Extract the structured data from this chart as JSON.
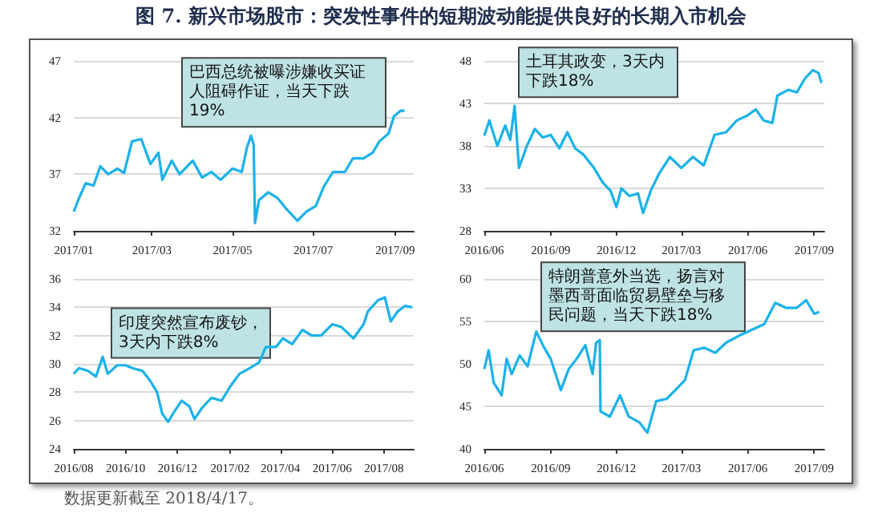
{
  "chart_data": [
    {
      "type": "line",
      "title": "图 7. 新兴市场股市：突发性事件的短期波动能提供良好的长期入市机会",
      "x": [
        "2017-01-01",
        "2017-01-05",
        "2017-01-10",
        "2017-01-16",
        "2017-01-21",
        "2017-01-27",
        "2017-02-03",
        "2017-02-08",
        "2017-02-14",
        "2017-02-21",
        "2017-02-28",
        "2017-03-06",
        "2017-03-09",
        "2017-03-16",
        "2017-03-22",
        "2017-04-01",
        "2017-04-08",
        "2017-04-15",
        "2017-04-22",
        "2017-05-01",
        "2017-05-08",
        "2017-05-12",
        "2017-05-15",
        "2017-05-17",
        "2017-05-18",
        "2017-05-21",
        "2017-05-28",
        "2017-06-04",
        "2017-06-11",
        "2017-06-19",
        "2017-06-26",
        "2017-07-03",
        "2017-07-09",
        "2017-07-16",
        "2017-07-25",
        "2017-07-31",
        "2017-08-08",
        "2017-08-15",
        "2017-08-20",
        "2017-08-27",
        "2017-08-31",
        "2017-09-05",
        "2017-09-08"
      ],
      "series": [
        {
          "color": "#1ab2ea",
          "values": [
            33.7,
            34.9,
            36.2,
            36.0,
            37.7,
            37.0,
            37.5,
            37.1,
            39.9,
            40.1,
            37.9,
            38.9,
            36.5,
            38.2,
            37.0,
            38.2,
            36.7,
            37.2,
            36.5,
            37.5,
            37.2,
            39.4,
            40.4,
            39.6,
            32.7,
            34.7,
            35.4,
            34.9,
            33.9,
            32.9,
            33.7,
            34.2,
            35.9,
            37.2,
            37.2,
            38.4,
            38.4,
            38.9,
            39.9,
            40.6,
            42.1,
            42.6,
            42.6
          ]
        }
      ],
      "xlim": [
        "2017-01-01",
        "2017-09-15"
      ],
      "xticks": [
        {
          "value": "2017-01-01",
          "label": "2017/01"
        },
        {
          "value": "2017-03-01",
          "label": "2017/03"
        },
        {
          "value": "2017-05-01",
          "label": "2017/05"
        },
        {
          "value": "2017-07-01",
          "label": "2017/07"
        },
        {
          "value": "2017-09-01",
          "label": "2017/09"
        }
      ],
      "ylim": [
        32,
        47
      ],
      "yticks": [
        32,
        37,
        42,
        47
      ],
      "grid": "y",
      "annotations": [
        {
          "text": "巴西总统被曝涉嫌收买证人阻碍作证，当天下跌19%",
          "x": "2017-05-15",
          "y": 40.4
        }
      ]
    },
    {
      "type": "line",
      "x": [
        "2016-06-01",
        "2016-06-08",
        "2016-06-19",
        "2016-06-30",
        "2016-07-07",
        "2016-07-13",
        "2016-07-19",
        "2016-07-30",
        "2016-08-10",
        "2016-08-21",
        "2016-09-01",
        "2016-09-13",
        "2016-09-24",
        "2016-10-05",
        "2016-10-16",
        "2016-10-31",
        "2016-11-12",
        "2016-11-23",
        "2016-12-01",
        "2016-12-08",
        "2016-12-19",
        "2016-12-31",
        "2017-01-07",
        "2017-01-18",
        "2017-01-29",
        "2017-02-13",
        "2017-03-01",
        "2017-03-17",
        "2017-04-01",
        "2017-04-16",
        "2017-05-02",
        "2017-05-17",
        "2017-06-01",
        "2017-06-12",
        "2017-06-23",
        "2017-07-05",
        "2017-07-12",
        "2017-07-27",
        "2017-08-08",
        "2017-08-19",
        "2017-08-30",
        "2017-09-07",
        "2017-09-11"
      ],
      "series": [
        {
          "color": "#1ab2ea",
          "values": [
            39.2,
            41.0,
            38.0,
            40.4,
            38.7,
            42.7,
            35.4,
            38.0,
            40.0,
            39.0,
            39.3,
            37.7,
            39.6,
            37.7,
            37.0,
            35.4,
            33.7,
            32.7,
            30.8,
            33.0,
            32.1,
            32.4,
            30.1,
            32.8,
            34.7,
            36.7,
            35.4,
            36.7,
            35.7,
            39.3,
            39.6,
            41.0,
            41.6,
            42.3,
            41.0,
            40.7,
            43.9,
            44.6,
            44.3,
            45.9,
            46.9,
            46.6,
            45.4
          ]
        }
      ],
      "xlim": [
        "2016-06-01",
        "2017-09-15"
      ],
      "xticks": [
        {
          "value": "2016-06-01",
          "label": "2016/06"
        },
        {
          "value": "2016-09-01",
          "label": "2016/09"
        },
        {
          "value": "2016-12-01",
          "label": "2016/12"
        },
        {
          "value": "2017-03-01",
          "label": "2017/03"
        },
        {
          "value": "2017-06-01",
          "label": "2017/06"
        },
        {
          "value": "2017-09-01",
          "label": "2017/09"
        }
      ],
      "ylim": [
        28,
        48
      ],
      "yticks": [
        28,
        33,
        38,
        43,
        48
      ],
      "grid": "y",
      "annotations": [
        {
          "text": "土耳其政变，3天内下跌18%",
          "x": "2016-07-13",
          "y": 42.7
        }
      ]
    },
    {
      "type": "line",
      "x": [
        "2016-08-01",
        "2016-08-07",
        "2016-08-18",
        "2016-08-27",
        "2016-09-04",
        "2016-09-10",
        "2016-09-21",
        "2016-10-01",
        "2016-10-09",
        "2016-10-21",
        "2016-10-30",
        "2016-11-07",
        "2016-11-13",
        "2016-11-20",
        "2016-11-28",
        "2016-12-06",
        "2016-12-15",
        "2016-12-21",
        "2016-12-30",
        "2017-01-10",
        "2017-01-22",
        "2017-02-01",
        "2017-02-12",
        "2017-02-24",
        "2017-03-07",
        "2017-03-15",
        "2017-03-27",
        "2017-04-04",
        "2017-04-15",
        "2017-04-27",
        "2017-05-08",
        "2017-05-19",
        "2017-06-01",
        "2017-06-12",
        "2017-06-26",
        "2017-07-08",
        "2017-07-13",
        "2017-07-25",
        "2017-08-02",
        "2017-08-09",
        "2017-08-17",
        "2017-08-26",
        "2017-09-03"
      ],
      "series": [
        {
          "color": "#1ab2ea",
          "values": [
            29.3,
            29.7,
            29.5,
            29.1,
            30.5,
            29.3,
            29.9,
            29.9,
            29.7,
            29.5,
            28.8,
            28.0,
            26.5,
            25.9,
            26.7,
            27.4,
            27.0,
            26.1,
            26.9,
            27.6,
            27.4,
            28.4,
            29.3,
            29.7,
            30.1,
            31.2,
            31.2,
            31.8,
            31.4,
            32.4,
            32.0,
            32.0,
            32.8,
            32.6,
            31.8,
            32.8,
            33.7,
            34.5,
            34.7,
            33.0,
            33.7,
            34.1,
            34.0
          ]
        }
      ],
      "xlim": [
        "2016-08-01",
        "2017-09-05"
      ],
      "xticks": [
        {
          "value": "2016-08-01",
          "label": "2016/08"
        },
        {
          "value": "2016-10-01",
          "label": "2016/10"
        },
        {
          "value": "2016-12-01",
          "label": "2016/12"
        },
        {
          "value": "2017-02-01",
          "label": "2017/02"
        },
        {
          "value": "2017-04-01",
          "label": "2017/04"
        },
        {
          "value": "2017-06-01",
          "label": "2017/06"
        },
        {
          "value": "2017-08-01",
          "label": "2017/08"
        }
      ],
      "ylim": [
        24,
        36
      ],
      "yticks": [
        24,
        26,
        28,
        30,
        32,
        34,
        36
      ],
      "grid": "y",
      "annotations": [
        {
          "text": "印度突然宣布废钞，3天内下跌8%",
          "x": "2016-10-15",
          "y": 29.8
        }
      ]
    },
    {
      "type": "line",
      "x": [
        "2016-06-01",
        "2016-06-07",
        "2016-06-14",
        "2016-06-25",
        "2016-07-02",
        "2016-07-09",
        "2016-07-20",
        "2016-07-31",
        "2016-08-12",
        "2016-08-23",
        "2016-09-01",
        "2016-09-15",
        "2016-09-26",
        "2016-10-07",
        "2016-10-19",
        "2016-10-29",
        "2016-11-03",
        "2016-11-08",
        "2016-11-09",
        "2016-11-22",
        "2016-12-06",
        "2016-12-18",
        "2017-01-02",
        "2017-01-13",
        "2017-01-25",
        "2017-02-09",
        "2017-02-24",
        "2017-03-06",
        "2017-03-18",
        "2017-04-02",
        "2017-04-17",
        "2017-05-02",
        "2017-05-22",
        "2017-06-09",
        "2017-06-24",
        "2017-07-09",
        "2017-07-24",
        "2017-08-08",
        "2017-08-21",
        "2017-09-01",
        "2017-09-08"
      ],
      "series": [
        {
          "color": "#1ab2ea",
          "values": [
            49.4,
            51.6,
            47.8,
            46.3,
            50.6,
            48.8,
            51.0,
            49.7,
            53.8,
            51.9,
            50.6,
            46.9,
            49.4,
            50.6,
            52.2,
            48.8,
            52.5,
            52.8,
            44.4,
            43.8,
            46.3,
            43.8,
            43.1,
            41.9,
            45.6,
            45.9,
            47.2,
            48.1,
            51.6,
            51.9,
            51.3,
            52.5,
            53.4,
            54.1,
            54.7,
            57.2,
            56.6,
            56.6,
            57.5,
            55.9,
            56.1
          ]
        }
      ],
      "xlim": [
        "2016-06-01",
        "2017-09-15"
      ],
      "xticks": [
        {
          "value": "2016-06-01",
          "label": "2016/06"
        },
        {
          "value": "2016-09-01",
          "label": "2016/09"
        },
        {
          "value": "2016-12-01",
          "label": "2016/12"
        },
        {
          "value": "2017-03-01",
          "label": "2017/03"
        },
        {
          "value": "2017-06-01",
          "label": "2017/06"
        },
        {
          "value": "2017-09-01",
          "label": "2017/09"
        }
      ],
      "ylim": [
        40,
        60
      ],
      "yticks": [
        40,
        45,
        50,
        55,
        60
      ],
      "grid": "y",
      "annotations": [
        {
          "text": "特朗普意外当选，扬言对墨西哥面临贸易壁垒与移民问题，当天下跌18%",
          "x": "2016-11-08",
          "y": 52.8
        },
        "数据更新截至 2018/4/17。"
      ]
    }
  ]
}
